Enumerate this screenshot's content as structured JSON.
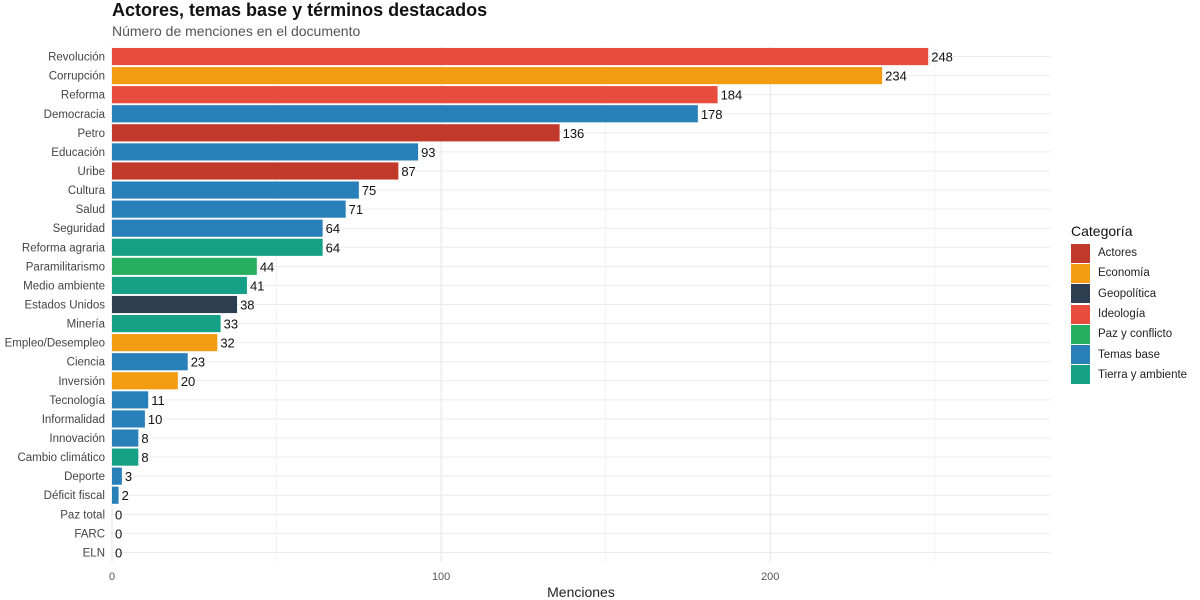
{
  "chart_data": {
    "type": "bar",
    "orientation": "horizontal",
    "title": "Actores, temas base y términos destacados",
    "subtitle": "Número de menciones en el documento",
    "xlabel": "Menciones",
    "ylabel": "",
    "xlim": [
      0,
      285
    ],
    "xticks": [
      0,
      100,
      200
    ],
    "grid": true,
    "legend_title": "Categoría",
    "legend_position": "right",
    "categories": [
      "Actores",
      "Economía",
      "Geopolítica",
      "Ideología",
      "Paz y conflicto",
      "Temas base",
      "Tierra y ambiente"
    ],
    "colors": {
      "Actores": "#C0392B",
      "Economía": "#F39C12",
      "Geopolítica": "#2C3E50",
      "Ideología": "#E74C3C",
      "Paz y conflicto": "#27AE60",
      "Temas base": "#2980B9",
      "Tierra y ambiente": "#16A085"
    },
    "bars": [
      {
        "label": "Revolución",
        "value": 248,
        "category": "Ideología"
      },
      {
        "label": "Corrupción",
        "value": 234,
        "category": "Economía"
      },
      {
        "label": "Reforma",
        "value": 184,
        "category": "Ideología"
      },
      {
        "label": "Democracia",
        "value": 178,
        "category": "Temas base"
      },
      {
        "label": "Petro",
        "value": 136,
        "category": "Actores"
      },
      {
        "label": "Educación",
        "value": 93,
        "category": "Temas base"
      },
      {
        "label": "Uribe",
        "value": 87,
        "category": "Actores"
      },
      {
        "label": "Cultura",
        "value": 75,
        "category": "Temas base"
      },
      {
        "label": "Salud",
        "value": 71,
        "category": "Temas base"
      },
      {
        "label": "Seguridad",
        "value": 64,
        "category": "Temas base"
      },
      {
        "label": "Reforma agraria",
        "value": 64,
        "category": "Tierra y ambiente"
      },
      {
        "label": "Paramilitarismo",
        "value": 44,
        "category": "Paz y conflicto"
      },
      {
        "label": "Medio ambiente",
        "value": 41,
        "category": "Tierra y ambiente"
      },
      {
        "label": "Estados Unidos",
        "value": 38,
        "category": "Geopolítica"
      },
      {
        "label": "Minería",
        "value": 33,
        "category": "Tierra y ambiente"
      },
      {
        "label": "Empleo/Desempleo",
        "value": 32,
        "category": "Economía"
      },
      {
        "label": "Ciencia",
        "value": 23,
        "category": "Temas base"
      },
      {
        "label": "Inversión",
        "value": 20,
        "category": "Economía"
      },
      {
        "label": "Tecnología",
        "value": 11,
        "category": "Temas base"
      },
      {
        "label": "Informalidad",
        "value": 10,
        "category": "Temas base"
      },
      {
        "label": "Innovación",
        "value": 8,
        "category": "Temas base"
      },
      {
        "label": "Cambio climático",
        "value": 8,
        "category": "Tierra y ambiente"
      },
      {
        "label": "Deporte",
        "value": 3,
        "category": "Temas base"
      },
      {
        "label": "Déficit fiscal",
        "value": 2,
        "category": "Temas base"
      },
      {
        "label": "Paz total",
        "value": 0,
        "category": "Paz y conflicto"
      },
      {
        "label": "FARC",
        "value": 0,
        "category": "Paz y conflicto"
      },
      {
        "label": "ELN",
        "value": 0,
        "category": "Paz y conflicto"
      }
    ]
  }
}
